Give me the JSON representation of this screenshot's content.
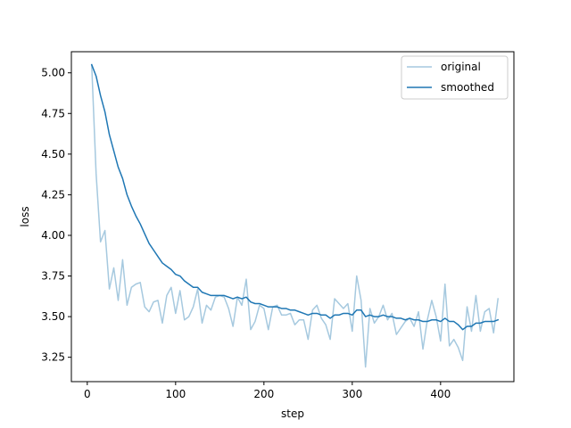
{
  "chart_data": {
    "type": "line",
    "xlabel": "step",
    "ylabel": "loss",
    "xlim": [
      -18,
      483
    ],
    "ylim": [
      3.1,
      5.13
    ],
    "xticks": [
      0,
      100,
      200,
      300,
      400
    ],
    "yticks": [
      3.25,
      3.5,
      3.75,
      4.0,
      4.25,
      4.5,
      4.75,
      5.0
    ],
    "ytick_labels": [
      "3.25",
      "3.50",
      "3.75",
      "4.00",
      "4.25",
      "4.50",
      "4.75",
      "5.00"
    ],
    "grid": false,
    "legend_position": "top-right",
    "colors": {
      "original": "#a6c9df",
      "smoothed": "#1f77b4"
    },
    "series": [
      {
        "name": "original",
        "x": [
          5,
          10,
          15,
          20,
          25,
          30,
          35,
          40,
          45,
          50,
          55,
          60,
          65,
          70,
          75,
          80,
          85,
          90,
          95,
          100,
          105,
          110,
          115,
          120,
          125,
          130,
          135,
          140,
          145,
          150,
          155,
          160,
          165,
          170,
          175,
          180,
          185,
          190,
          195,
          200,
          205,
          210,
          215,
          220,
          225,
          230,
          235,
          240,
          245,
          250,
          255,
          260,
          265,
          270,
          275,
          280,
          285,
          290,
          295,
          300,
          305,
          310,
          315,
          320,
          325,
          330,
          335,
          340,
          345,
          350,
          355,
          360,
          365,
          370,
          375,
          380,
          385,
          390,
          395,
          400,
          405,
          410,
          415,
          420,
          425,
          430,
          435,
          440,
          445,
          450,
          455,
          460,
          465
        ],
        "values": [
          5.05,
          4.38,
          3.96,
          4.03,
          3.67,
          3.8,
          3.6,
          3.85,
          3.57,
          3.68,
          3.7,
          3.71,
          3.56,
          3.53,
          3.59,
          3.6,
          3.46,
          3.63,
          3.68,
          3.52,
          3.66,
          3.48,
          3.5,
          3.56,
          3.67,
          3.46,
          3.57,
          3.54,
          3.62,
          3.63,
          3.62,
          3.55,
          3.44,
          3.62,
          3.57,
          3.73,
          3.42,
          3.47,
          3.57,
          3.55,
          3.42,
          3.56,
          3.57,
          3.51,
          3.51,
          3.52,
          3.45,
          3.48,
          3.48,
          3.36,
          3.54,
          3.57,
          3.49,
          3.45,
          3.36,
          3.61,
          3.58,
          3.55,
          3.58,
          3.41,
          3.75,
          3.6,
          3.19,
          3.55,
          3.46,
          3.5,
          3.57,
          3.48,
          3.52,
          3.39,
          3.43,
          3.47,
          3.49,
          3.44,
          3.53,
          3.3,
          3.48,
          3.6,
          3.5,
          3.35,
          3.7,
          3.32,
          3.36,
          3.31,
          3.23,
          3.56,
          3.41,
          3.63,
          3.41,
          3.53,
          3.55,
          3.4,
          3.61
        ]
      },
      {
        "name": "smoothed",
        "x": [
          5,
          10,
          15,
          20,
          25,
          30,
          35,
          40,
          45,
          50,
          55,
          60,
          65,
          70,
          75,
          80,
          85,
          90,
          95,
          100,
          105,
          110,
          115,
          120,
          125,
          130,
          135,
          140,
          145,
          150,
          155,
          160,
          165,
          170,
          175,
          180,
          185,
          190,
          195,
          200,
          205,
          210,
          215,
          220,
          225,
          230,
          235,
          240,
          245,
          250,
          255,
          260,
          265,
          270,
          275,
          280,
          285,
          290,
          295,
          300,
          305,
          310,
          315,
          320,
          325,
          330,
          335,
          340,
          345,
          350,
          355,
          360,
          365,
          370,
          375,
          380,
          385,
          390,
          395,
          400,
          405,
          410,
          415,
          420,
          425,
          430,
          435,
          440,
          445,
          450,
          455,
          460,
          465
        ],
        "values": [
          5.05,
          4.98,
          4.86,
          4.76,
          4.62,
          4.52,
          4.42,
          4.35,
          4.25,
          4.18,
          4.12,
          4.07,
          4.01,
          3.95,
          3.91,
          3.87,
          3.83,
          3.81,
          3.79,
          3.76,
          3.75,
          3.72,
          3.7,
          3.68,
          3.68,
          3.65,
          3.64,
          3.63,
          3.63,
          3.63,
          3.63,
          3.62,
          3.61,
          3.62,
          3.61,
          3.62,
          3.59,
          3.58,
          3.58,
          3.57,
          3.56,
          3.56,
          3.56,
          3.55,
          3.55,
          3.54,
          3.54,
          3.53,
          3.52,
          3.51,
          3.52,
          3.52,
          3.51,
          3.51,
          3.49,
          3.51,
          3.51,
          3.52,
          3.52,
          3.51,
          3.54,
          3.54,
          3.5,
          3.51,
          3.5,
          3.5,
          3.51,
          3.5,
          3.5,
          3.49,
          3.49,
          3.48,
          3.49,
          3.48,
          3.48,
          3.47,
          3.47,
          3.48,
          3.48,
          3.47,
          3.49,
          3.47,
          3.47,
          3.45,
          3.42,
          3.44,
          3.44,
          3.46,
          3.46,
          3.47,
          3.47,
          3.47,
          3.48
        ]
      }
    ]
  }
}
